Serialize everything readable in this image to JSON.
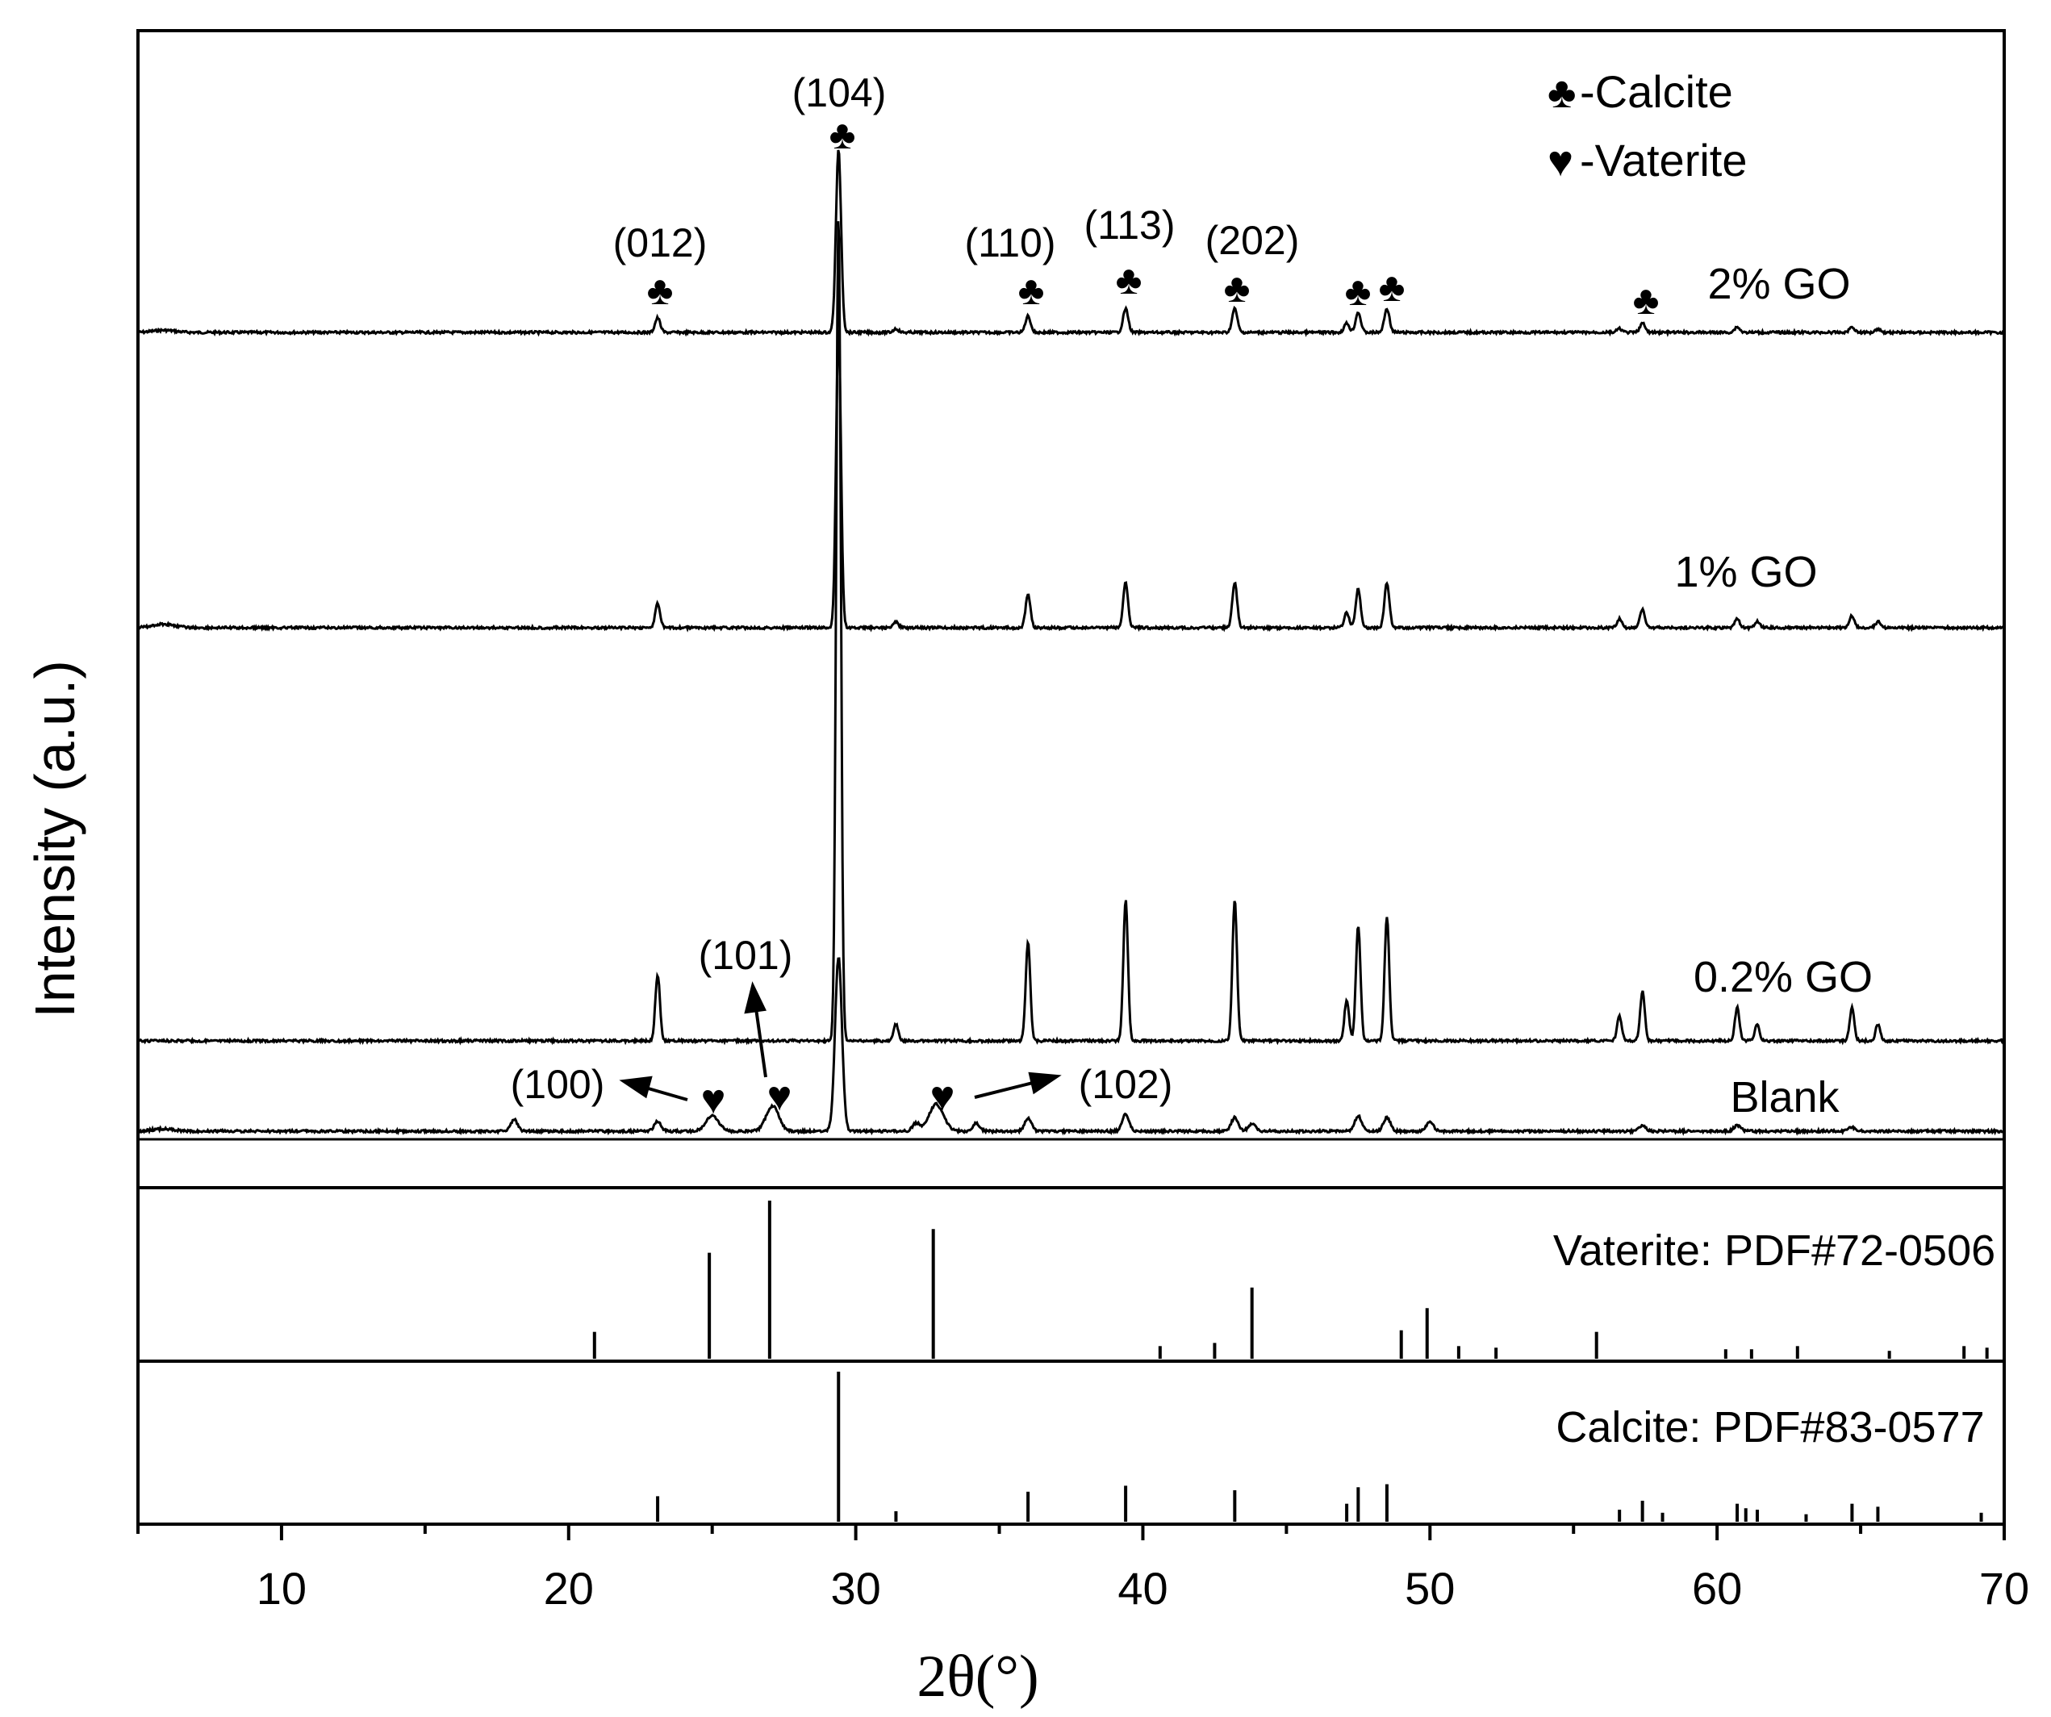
{
  "chart_data": {
    "type": "line",
    "xlabel": "2θ(°)",
    "ylabel": "Intensity (a.u.)",
    "xlim": [
      5,
      70
    ],
    "xticks": [
      10,
      20,
      30,
      40,
      50,
      60,
      70
    ],
    "tick_labels": [
      "10",
      "20",
      "30",
      "40",
      "50",
      "60",
      "70"
    ],
    "legend": {
      "position": "top-right",
      "entries": [
        {
          "symbol": "♣",
          "label": "-Calcite"
        },
        {
          "symbol": "♥",
          "label": "-Vaterite"
        }
      ]
    },
    "series": [
      {
        "name": "2% GO",
        "peaks": [
          [
            23.1,
            0.08
          ],
          [
            29.4,
            1.0
          ],
          [
            31.4,
            0.02
          ],
          [
            36.0,
            0.09
          ],
          [
            39.4,
            0.13
          ],
          [
            43.2,
            0.13
          ],
          [
            47.1,
            0.05
          ],
          [
            47.5,
            0.11
          ],
          [
            48.5,
            0.13
          ],
          [
            56.6,
            0.02
          ],
          [
            57.4,
            0.05
          ],
          [
            60.7,
            0.03
          ],
          [
            64.7,
            0.03
          ],
          [
            65.6,
            0.02
          ]
        ]
      },
      {
        "name": "1% GO",
        "peaks": [
          [
            23.1,
            0.08
          ],
          [
            29.4,
            1.0
          ],
          [
            31.4,
            0.02
          ],
          [
            36.0,
            0.11
          ],
          [
            39.4,
            0.15
          ],
          [
            43.2,
            0.15
          ],
          [
            47.1,
            0.05
          ],
          [
            47.5,
            0.13
          ],
          [
            48.5,
            0.15
          ],
          [
            56.6,
            0.03
          ],
          [
            57.4,
            0.06
          ],
          [
            60.7,
            0.03
          ],
          [
            61.4,
            0.02
          ],
          [
            64.7,
            0.04
          ],
          [
            65.6,
            0.02
          ]
        ]
      },
      {
        "name": "0.2% GO",
        "peaks": [
          [
            23.1,
            0.08
          ],
          [
            29.4,
            1.0
          ],
          [
            31.4,
            0.02
          ],
          [
            36.0,
            0.12
          ],
          [
            39.4,
            0.17
          ],
          [
            43.2,
            0.17
          ],
          [
            47.1,
            0.05
          ],
          [
            47.5,
            0.14
          ],
          [
            48.5,
            0.15
          ],
          [
            56.6,
            0.03
          ],
          [
            57.4,
            0.06
          ],
          [
            60.7,
            0.04
          ],
          [
            61.4,
            0.02
          ],
          [
            64.7,
            0.04
          ],
          [
            65.6,
            0.02
          ]
        ]
      },
      {
        "name": "Blank",
        "peaks": [
          [
            18.1,
            0.06
          ],
          [
            23.1,
            0.05
          ],
          [
            25.0,
            0.08
          ],
          [
            27.1,
            0.13
          ],
          [
            29.4,
            0.9
          ],
          [
            32.1,
            0.04
          ],
          [
            32.8,
            0.14
          ],
          [
            34.2,
            0.04
          ],
          [
            36.0,
            0.07
          ],
          [
            39.4,
            0.09
          ],
          [
            43.2,
            0.07
          ],
          [
            43.8,
            0.04
          ],
          [
            47.5,
            0.08
          ],
          [
            48.5,
            0.07
          ],
          [
            50.0,
            0.05
          ],
          [
            57.4,
            0.03
          ],
          [
            60.7,
            0.03
          ],
          [
            64.7,
            0.02
          ]
        ]
      }
    ],
    "peak_labels": [
      "(104)",
      "(012)",
      "(110)",
      "(113)",
      "(202)",
      "(101)",
      "(100)",
      "(102)"
    ],
    "reference_patterns": [
      {
        "name": "Vaterite: PDF#72-0506",
        "lines": [
          [
            20.9,
            0.17
          ],
          [
            24.9,
            0.67
          ],
          [
            27.0,
            1.0
          ],
          [
            32.7,
            0.82
          ],
          [
            40.6,
            0.08
          ],
          [
            42.5,
            0.1
          ],
          [
            43.8,
            0.45
          ],
          [
            49.0,
            0.18
          ],
          [
            49.9,
            0.32
          ],
          [
            51.0,
            0.08
          ],
          [
            52.3,
            0.07
          ],
          [
            55.8,
            0.17
          ],
          [
            60.3,
            0.06
          ],
          [
            61.2,
            0.06
          ],
          [
            62.8,
            0.08
          ],
          [
            66.0,
            0.05
          ],
          [
            68.6,
            0.08
          ],
          [
            69.4,
            0.07
          ]
        ]
      },
      {
        "name": "Calcite: PDF#83-0577",
        "lines": [
          [
            23.1,
            0.17
          ],
          [
            29.4,
            1.0
          ],
          [
            31.4,
            0.07
          ],
          [
            36.0,
            0.2
          ],
          [
            39.4,
            0.24
          ],
          [
            43.2,
            0.21
          ],
          [
            47.1,
            0.12
          ],
          [
            47.5,
            0.23
          ],
          [
            48.5,
            0.25
          ],
          [
            56.6,
            0.08
          ],
          [
            57.4,
            0.14
          ],
          [
            58.1,
            0.06
          ],
          [
            60.7,
            0.12
          ],
          [
            61.0,
            0.09
          ],
          [
            61.4,
            0.08
          ],
          [
            63.1,
            0.05
          ],
          [
            64.7,
            0.12
          ],
          [
            65.6,
            0.1
          ],
          [
            69.2,
            0.06
          ]
        ]
      }
    ]
  }
}
